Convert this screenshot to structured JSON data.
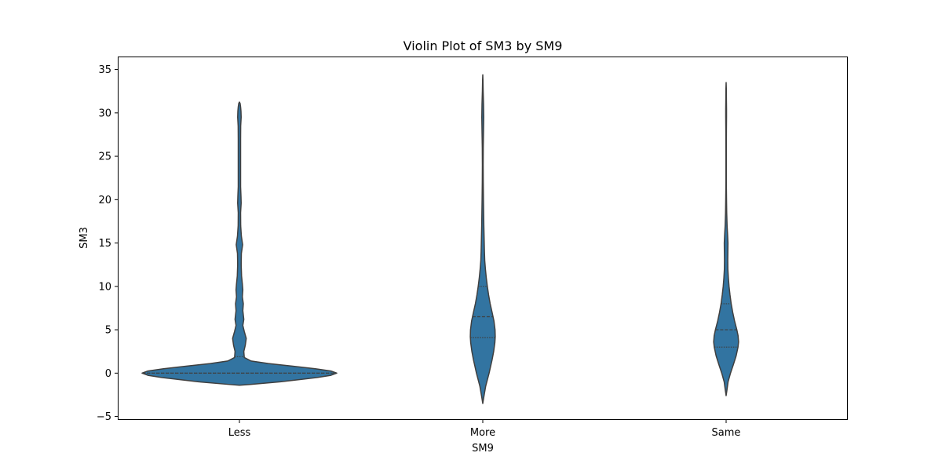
{
  "chart_data": {
    "type": "violin",
    "title": "Violin Plot of SM3 by SM9",
    "xlabel": "SM9",
    "ylabel": "SM3",
    "categories": [
      "Less",
      "More",
      "Same"
    ],
    "ylim": [
      -5.4,
      36.5
    ],
    "yticks": [
      -5,
      0,
      5,
      10,
      15,
      20,
      25,
      30,
      35
    ],
    "ytick_labels": [
      "−5",
      "0",
      "5",
      "10",
      "15",
      "20",
      "25",
      "30",
      "35"
    ],
    "grid": false,
    "color": "#3274a1",
    "edge_color": "#3f3f3f",
    "violins": [
      {
        "category": "Less",
        "quartiles": [
          0,
          0,
          1.9
        ],
        "profile": [
          [
            -1.4,
            0.0
          ],
          [
            -1.3,
            0.11
          ],
          [
            -1.0,
            0.42
          ],
          [
            -0.5,
            0.8
          ],
          [
            -0.25,
            0.94
          ],
          [
            0.0,
            1.0
          ],
          [
            0.25,
            0.94
          ],
          [
            0.5,
            0.78
          ],
          [
            0.8,
            0.55
          ],
          [
            1.1,
            0.3
          ],
          [
            1.4,
            0.12
          ],
          [
            1.8,
            0.05
          ],
          [
            2.5,
            0.045
          ],
          [
            3.2,
            0.06
          ],
          [
            4.0,
            0.07
          ],
          [
            4.8,
            0.05
          ],
          [
            5.5,
            0.035
          ],
          [
            6.2,
            0.045
          ],
          [
            7.2,
            0.035
          ],
          [
            8.0,
            0.04
          ],
          [
            8.8,
            0.03
          ],
          [
            9.6,
            0.035
          ],
          [
            10.3,
            0.03
          ],
          [
            11.2,
            0.022
          ],
          [
            12.5,
            0.018
          ],
          [
            13.8,
            0.02
          ],
          [
            14.8,
            0.033
          ],
          [
            15.8,
            0.02
          ],
          [
            17.0,
            0.013
          ],
          [
            18.5,
            0.012
          ],
          [
            19.6,
            0.018
          ],
          [
            20.4,
            0.016
          ],
          [
            21.5,
            0.012
          ],
          [
            24.0,
            0.012
          ],
          [
            27.0,
            0.012
          ],
          [
            28.5,
            0.013
          ],
          [
            29.5,
            0.018
          ],
          [
            30.2,
            0.016
          ],
          [
            30.7,
            0.012
          ],
          [
            31.1,
            0.007
          ],
          [
            31.25,
            0.0
          ]
        ]
      },
      {
        "category": "More",
        "quartiles": [
          4.1,
          6.5,
          10.0
        ],
        "profile": [
          [
            -3.5,
            0.0
          ],
          [
            -2.8,
            0.01
          ],
          [
            -1.5,
            0.03
          ],
          [
            0.0,
            0.065
          ],
          [
            1.5,
            0.095
          ],
          [
            2.5,
            0.112
          ],
          [
            3.5,
            0.124
          ],
          [
            4.2,
            0.128
          ],
          [
            5.0,
            0.126
          ],
          [
            6.0,
            0.115
          ],
          [
            7.0,
            0.096
          ],
          [
            8.0,
            0.076
          ],
          [
            9.0,
            0.06
          ],
          [
            10.0,
            0.047
          ],
          [
            11.0,
            0.036
          ],
          [
            12.0,
            0.027
          ],
          [
            13.0,
            0.02
          ],
          [
            14.0,
            0.017
          ],
          [
            15.0,
            0.015
          ],
          [
            16.0,
            0.013
          ],
          [
            17.0,
            0.011
          ],
          [
            18.5,
            0.009
          ],
          [
            20.0,
            0.007
          ],
          [
            22.0,
            0.005
          ],
          [
            24.0,
            0.004
          ],
          [
            26.0,
            0.005
          ],
          [
            28.0,
            0.008
          ],
          [
            29.5,
            0.01
          ],
          [
            31.0,
            0.008
          ],
          [
            32.5,
            0.004
          ],
          [
            33.8,
            0.002
          ],
          [
            34.4,
            0.0
          ]
        ]
      },
      {
        "category": "Same",
        "quartiles": [
          3.0,
          5.0,
          8.0
        ],
        "profile": [
          [
            -2.6,
            0.0
          ],
          [
            -2.0,
            0.008
          ],
          [
            -1.0,
            0.02
          ],
          [
            0.0,
            0.045
          ],
          [
            1.0,
            0.075
          ],
          [
            2.0,
            0.103
          ],
          [
            3.0,
            0.122
          ],
          [
            3.6,
            0.128
          ],
          [
            4.3,
            0.123
          ],
          [
            5.0,
            0.11
          ],
          [
            6.0,
            0.087
          ],
          [
            7.0,
            0.068
          ],
          [
            8.0,
            0.052
          ],
          [
            9.0,
            0.04
          ],
          [
            10.0,
            0.03
          ],
          [
            11.0,
            0.023
          ],
          [
            12.0,
            0.018
          ],
          [
            13.0,
            0.017
          ],
          [
            14.0,
            0.018
          ],
          [
            15.0,
            0.019
          ],
          [
            16.0,
            0.015
          ],
          [
            17.0,
            0.01
          ],
          [
            18.5,
            0.006
          ],
          [
            20.0,
            0.004
          ],
          [
            22.0,
            0.002
          ],
          [
            25.0,
            0.002
          ],
          [
            28.0,
            0.003
          ],
          [
            29.5,
            0.004
          ],
          [
            30.5,
            0.004
          ],
          [
            31.5,
            0.003
          ],
          [
            32.8,
            0.002
          ],
          [
            33.5,
            0.0
          ]
        ]
      }
    ]
  }
}
